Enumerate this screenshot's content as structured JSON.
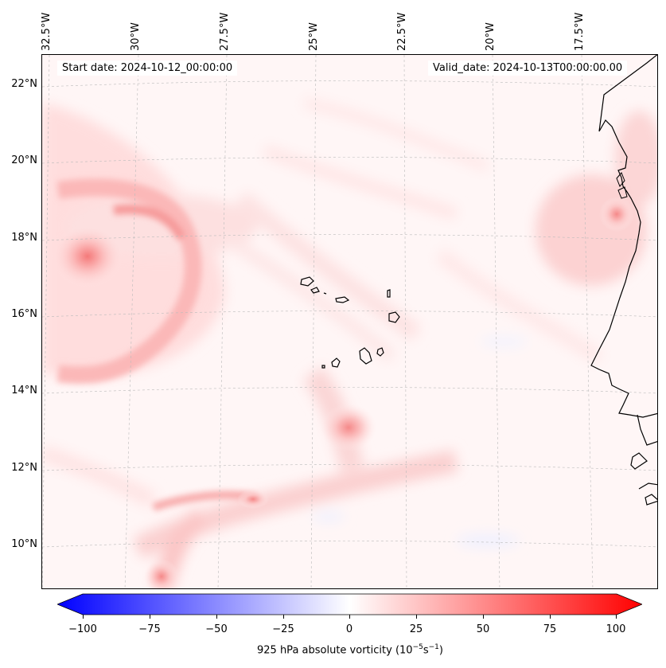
{
  "map": {
    "title_left": "Start date: 2024-10-12_00:00:00",
    "title_right": "Valid_date: 2024-10-13T00:00:00.00",
    "lon_labels": [
      "32.5°W",
      "30°W",
      "27.5°W",
      "25°W",
      "22.5°W",
      "20°W",
      "17.5°W"
    ],
    "lat_labels": [
      "22°N",
      "20°N",
      "18°N",
      "16°N",
      "14°N",
      "12°N",
      "10°N"
    ]
  },
  "colorbar": {
    "ticks": [
      "−100",
      "−75",
      "−50",
      "−25",
      "0",
      "25",
      "50",
      "75",
      "100"
    ],
    "label_main": "925 hPa absolute vorticity (10",
    "label_exp1": "−5",
    "label_mid": "s",
    "label_exp2": "−1",
    "label_end": ")",
    "colors": {
      "min": "#0000ff",
      "mid": "#ffffff",
      "max": "#ff0000"
    }
  }
}
